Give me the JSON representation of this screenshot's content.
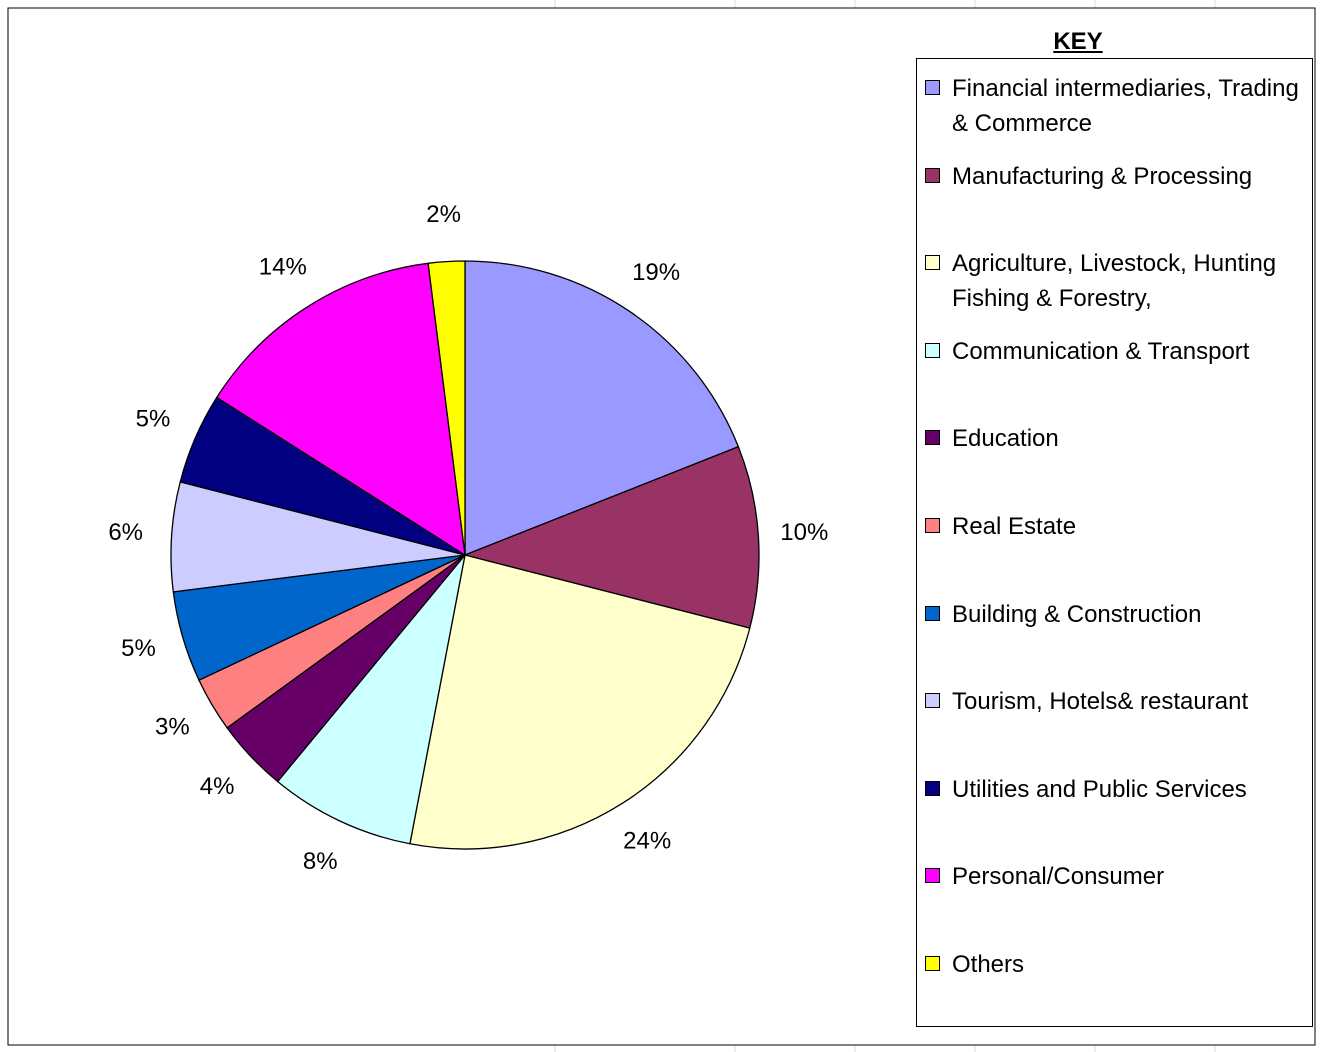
{
  "chart_data": {
    "type": "pie",
    "legend_title": "KEY",
    "categories": [
      "Financial intermediaries, Trading & Commerce",
      "Manufacturing & Processing",
      "Agriculture, Livestock, Hunting Fishing & Forestry,",
      "Communication & Transport",
      "Education",
      "Real Estate",
      "Building & Construction",
      "Tourism, Hotels& restaurant",
      "Utilities and Public Services",
      "Personal/Consumer",
      "Others"
    ],
    "values": [
      19,
      10,
      24,
      8,
      4,
      3,
      5,
      6,
      5,
      14,
      2
    ],
    "value_labels": [
      "19%",
      "10%",
      "24%",
      "8%",
      "4%",
      "3%",
      "5%",
      "6%",
      "5%",
      "14%",
      "2%"
    ],
    "colors": [
      "#9999ff",
      "#993366",
      "#ffffcc",
      "#ccffff",
      "#660066",
      "#ff8080",
      "#0066cc",
      "#ccccff",
      "#000080",
      "#ff00ff",
      "#ffff00"
    ],
    "legend": "right"
  }
}
